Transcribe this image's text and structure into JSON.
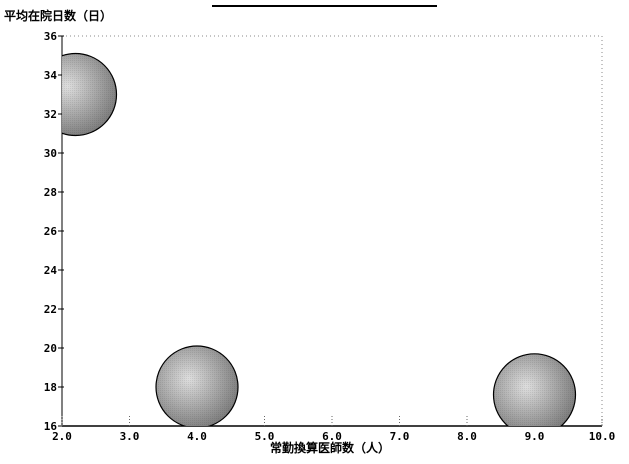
{
  "chart_data": {
    "type": "bubble",
    "title": "",
    "ylabel": "平均在院日数（日）",
    "xlabel": "常勤換算医師数（人）",
    "xlim": [
      2.0,
      10.0
    ],
    "ylim": [
      16,
      36
    ],
    "x_ticks": [
      "2.0",
      "3.0",
      "4.0",
      "5.0",
      "6.0",
      "7.0",
      "8.0",
      "9.0",
      "10.0"
    ],
    "y_ticks": [
      "16",
      "18",
      "20",
      "22",
      "24",
      "26",
      "28",
      "30",
      "32",
      "34",
      "36"
    ],
    "points": [
      {
        "x": 2.2,
        "y": 33.0,
        "size": 1.0
      },
      {
        "x": 4.0,
        "y": 18.0,
        "size": 1.0
      },
      {
        "x": 9.0,
        "y": 17.6,
        "size": 1.0
      }
    ],
    "grid": false,
    "colors": {
      "bubble_light": "#d6d6d6",
      "bubble_dark": "#777777",
      "axis": "#000000"
    }
  }
}
